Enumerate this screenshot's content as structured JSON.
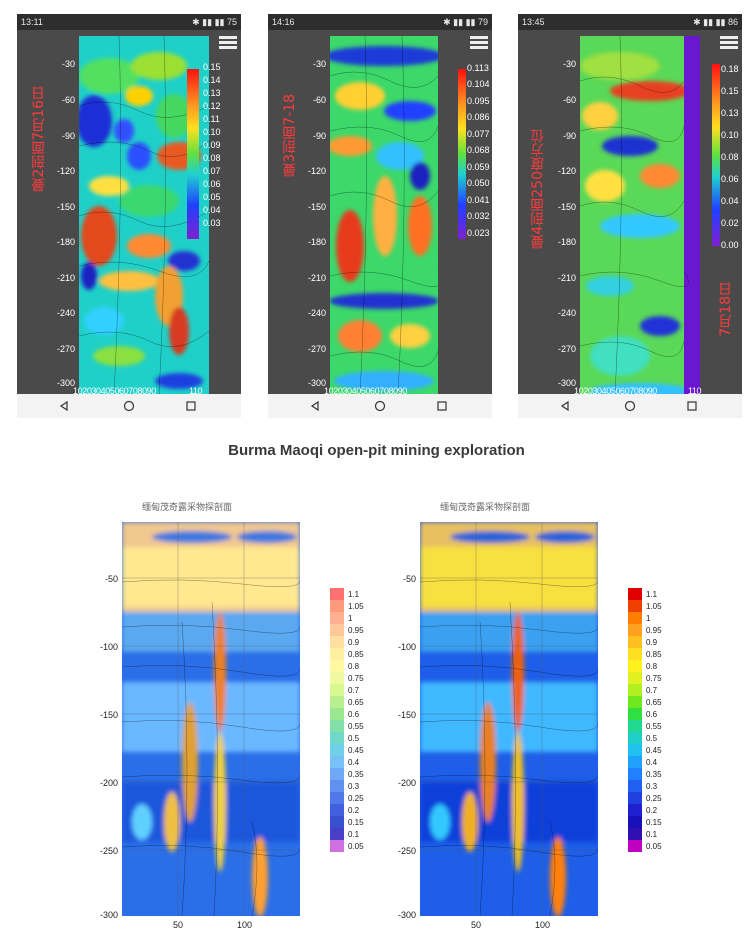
{
  "phones": [
    {
      "status_time": "13:11",
      "battery": "75",
      "vertical_label": "曼2剖面7月16日",
      "side_label": "",
      "scale_values": [
        "0.15",
        "0.14",
        "0.13",
        "0.12",
        "0.11",
        "0.10",
        "0.09",
        "0.08",
        "0.07",
        "0.06",
        "0.05",
        "0.04",
        "0.03"
      ],
      "y_ticks": [
        "-30",
        "-60",
        "-90",
        "-120",
        "-150",
        "-180",
        "-210",
        "-240",
        "-270",
        "-300"
      ],
      "x_ticks": "102030405060708090",
      "x_extra": "110"
    },
    {
      "status_time": "14:16",
      "battery": "79",
      "vertical_label": "曼3剖面7-18",
      "side_label": "",
      "scale_values": [
        "0.113",
        "0.104",
        "0.095",
        "0.086",
        "0.077",
        "0.068",
        "0.059",
        "0.050",
        "0.041",
        "0.032",
        "0.023"
      ],
      "y_ticks": [
        "-30",
        "-60",
        "-90",
        "-120",
        "-150",
        "-180",
        "-210",
        "-240",
        "-270",
        "-300"
      ],
      "x_ticks": "102030405060708090",
      "x_extra": ""
    },
    {
      "status_time": "13:45",
      "battery": "86",
      "vertical_label": "曼4剖面250度方位",
      "side_label": "7月18日",
      "scale_values": [
        "0.18",
        "0.15",
        "0.13",
        "0.10",
        "0.08",
        "0.06",
        "0.04",
        "0.02",
        "0.00"
      ],
      "y_ticks": [
        "-30",
        "-60",
        "-90",
        "-120",
        "-150",
        "-180",
        "-210",
        "-240",
        "-270",
        "-300"
      ],
      "x_ticks": "102030405060708090",
      "x_extra": "110"
    }
  ],
  "caption": "Burma Maoqi open-pit mining exploration",
  "panels": [
    {
      "title": "缅甸茂奇露采物探剖面",
      "y_ticks": [
        "-50",
        "-100",
        "-150",
        "-200",
        "-250",
        "-300"
      ],
      "x_ticks": [
        "50",
        "100"
      ],
      "legend": [
        "1.1",
        "1.05",
        "1",
        "0.95",
        "0.9",
        "0.85",
        "0.8",
        "0.75",
        "0.7",
        "0.65",
        "0.6",
        "0.55",
        "0.5",
        "0.45",
        "0.4",
        "0.35",
        "0.3",
        "0.25",
        "0.2",
        "0.15",
        "0.1",
        "0.05"
      ]
    },
    {
      "title": "缅甸茂奇露采物探剖面",
      "y_ticks": [
        "-50",
        "-100",
        "-150",
        "-200",
        "-250",
        "-300"
      ],
      "x_ticks": [
        "50",
        "100"
      ],
      "legend": [
        "1.1",
        "1.05",
        "1",
        "0.95",
        "0.9",
        "0.85",
        "0.8",
        "0.75",
        "0.7",
        "0.65",
        "0.6",
        "0.55",
        "0.5",
        "0.45",
        "0.4",
        "0.35",
        "0.3",
        "0.25",
        "0.2",
        "0.15",
        "0.1",
        "0.05"
      ]
    }
  ],
  "colors": {
    "phone_bg": "#4a4a4a",
    "label_red": "#ff3a3a",
    "panel_legend_top": "#e60000",
    "panel_legend_bottom": "#c000c0"
  }
}
